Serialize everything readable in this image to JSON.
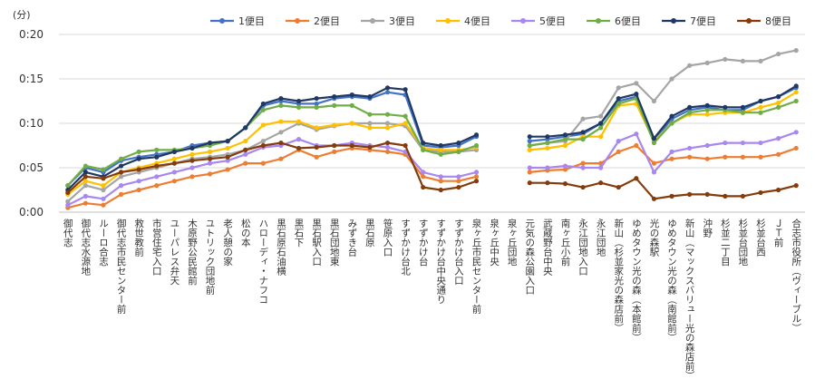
{
  "chart_data": {
    "type": "line",
    "ylabel": "(分)",
    "ylim": [
      0,
      0.2
    ],
    "yticks": [
      "0:00",
      "0:05",
      "0:10",
      "0:15",
      "0:20"
    ],
    "yticks_values": [
      0,
      0.05,
      0.1,
      0.15,
      0.2
    ],
    "grid": true,
    "legend": "top",
    "categories": [
      "御代志",
      "御代志水源地",
      "ルーロ合志",
      "御代志市民センター前",
      "救世教前",
      "市営住宅入口",
      "ユーパレス弁天",
      "木原野公民館前",
      "ユトリック団地前",
      "老人憩の家",
      "松の本",
      "ハローディ・ナフコ",
      "黒石原石油横",
      "黒石下",
      "黒石駅入口",
      "黒石団地東",
      "みずき台",
      "黒石原",
      "笹原入口",
      "すずかけ台北",
      "すずかけ台",
      "すずかけ台中央通り",
      "すずかけ台入口",
      "泉ヶ丘市民センター前",
      "泉ヶ丘中央",
      "泉ヶ丘団地",
      "元気の森公園入口",
      "武蔵野台中央",
      "南ヶ丘小前",
      "永江団地入口",
      "永江団地",
      "新山（杉並家光の森店前）",
      "ゆめタウン光の森（本館前）",
      "光の森駅",
      "ゆめタウン光の森（南館前）",
      "新山（マックスバリュー光の森店前）",
      "沖野",
      "杉並二丁目",
      "杉並台団地",
      "杉並台西",
      "ＪＴ前",
      "合志市役所（ヴィーブル）"
    ],
    "series": [
      {
        "name": "1便目",
        "color": "#4472c4",
        "values": [
          0.03,
          0.05,
          0.045,
          0.058,
          0.062,
          0.065,
          0.068,
          0.075,
          0.078,
          0.08,
          0.095,
          0.12,
          0.125,
          0.122,
          0.122,
          0.128,
          0.13,
          0.128,
          0.135,
          0.132,
          0.075,
          0.073,
          0.075,
          0.085,
          null,
          null,
          0.08,
          0.082,
          0.085,
          0.088,
          0.1,
          0.125,
          0.13,
          0.08,
          0.105,
          0.115,
          0.118,
          0.115,
          0.115,
          0.125,
          0.13,
          0.14
        ]
      },
      {
        "name": "2便目",
        "color": "#ed7d31",
        "values": [
          0.005,
          0.01,
          0.008,
          0.02,
          0.025,
          0.03,
          0.035,
          0.04,
          0.043,
          0.048,
          0.055,
          0.055,
          0.06,
          0.07,
          0.062,
          0.068,
          0.072,
          0.07,
          0.068,
          0.065,
          0.04,
          0.035,
          0.035,
          0.04,
          null,
          null,
          0.045,
          0.047,
          0.048,
          0.055,
          0.055,
          0.068,
          0.075,
          0.055,
          0.06,
          0.062,
          0.06,
          0.062,
          0.062,
          0.062,
          0.065,
          0.072
        ]
      },
      {
        "name": "3便目",
        "color": "#a5a5a5",
        "values": [
          0.012,
          0.03,
          0.025,
          0.04,
          0.045,
          0.05,
          0.055,
          0.06,
          0.062,
          0.065,
          0.07,
          0.08,
          0.09,
          0.1,
          0.093,
          0.097,
          0.1,
          0.1,
          0.1,
          0.097,
          0.07,
          0.068,
          0.068,
          0.07,
          null,
          null,
          0.075,
          0.078,
          0.08,
          0.105,
          0.108,
          0.14,
          0.145,
          0.125,
          0.15,
          0.165,
          0.168,
          0.172,
          0.17,
          0.17,
          0.178,
          0.182
        ]
      },
      {
        "name": "4便目",
        "color": "#ffc000",
        "values": [
          0.02,
          0.035,
          0.03,
          0.045,
          0.05,
          0.055,
          0.06,
          0.065,
          0.068,
          0.072,
          0.08,
          0.098,
          0.102,
          0.102,
          0.095,
          0.098,
          0.1,
          0.095,
          0.095,
          0.1,
          0.072,
          0.07,
          0.07,
          0.073,
          null,
          null,
          0.07,
          0.072,
          0.075,
          0.085,
          0.085,
          0.12,
          0.122,
          0.08,
          0.1,
          0.11,
          0.11,
          0.112,
          0.112,
          0.118,
          0.123,
          0.135
        ]
      },
      {
        "name": "5便目",
        "color": "#a887f0",
        "values": [
          0.008,
          0.018,
          0.015,
          0.03,
          0.035,
          0.04,
          0.045,
          0.05,
          0.055,
          0.058,
          0.065,
          0.073,
          0.075,
          0.082,
          0.075,
          0.075,
          0.078,
          0.075,
          0.073,
          0.068,
          0.045,
          0.04,
          0.04,
          0.045,
          null,
          null,
          0.05,
          0.05,
          0.052,
          0.05,
          0.05,
          0.08,
          0.088,
          0.045,
          0.068,
          0.072,
          0.075,
          0.078,
          0.078,
          0.078,
          0.083,
          0.09
        ]
      },
      {
        "name": "6便目",
        "color": "#70ad47",
        "values": [
          0.03,
          0.052,
          0.048,
          0.06,
          0.068,
          0.07,
          0.07,
          0.072,
          0.075,
          0.08,
          0.095,
          0.115,
          0.12,
          0.118,
          0.118,
          0.12,
          0.12,
          0.11,
          0.11,
          0.108,
          0.07,
          0.065,
          0.068,
          0.075,
          null,
          null,
          0.075,
          0.078,
          0.082,
          0.082,
          0.095,
          0.122,
          0.128,
          0.078,
          0.1,
          0.112,
          0.115,
          0.115,
          0.112,
          0.112,
          0.118,
          0.125
        ]
      },
      {
        "name": "7便目",
        "color": "#1f3864",
        "values": [
          0.025,
          0.045,
          0.04,
          0.052,
          0.06,
          0.062,
          0.068,
          0.072,
          0.078,
          0.08,
          0.095,
          0.122,
          0.128,
          0.125,
          0.128,
          0.13,
          0.132,
          0.13,
          0.14,
          0.138,
          0.078,
          0.075,
          0.078,
          0.087,
          null,
          null,
          0.085,
          0.085,
          0.087,
          0.09,
          0.1,
          0.128,
          0.133,
          0.083,
          0.108,
          0.118,
          0.12,
          0.118,
          0.118,
          0.125,
          0.13,
          0.142
        ]
      },
      {
        "name": "8便目",
        "color": "#843c0c",
        "values": [
          0.022,
          0.04,
          0.038,
          0.045,
          0.048,
          0.052,
          0.055,
          0.058,
          0.06,
          0.062,
          0.07,
          0.075,
          0.078,
          0.072,
          0.073,
          0.075,
          0.075,
          0.073,
          0.078,
          0.075,
          0.028,
          0.025,
          0.028,
          0.035,
          null,
          null,
          0.033,
          0.033,
          0.032,
          0.028,
          0.033,
          0.028,
          0.038,
          0.015,
          0.018,
          0.02,
          0.02,
          0.018,
          0.018,
          0.022,
          0.025,
          0.03
        ]
      }
    ]
  }
}
